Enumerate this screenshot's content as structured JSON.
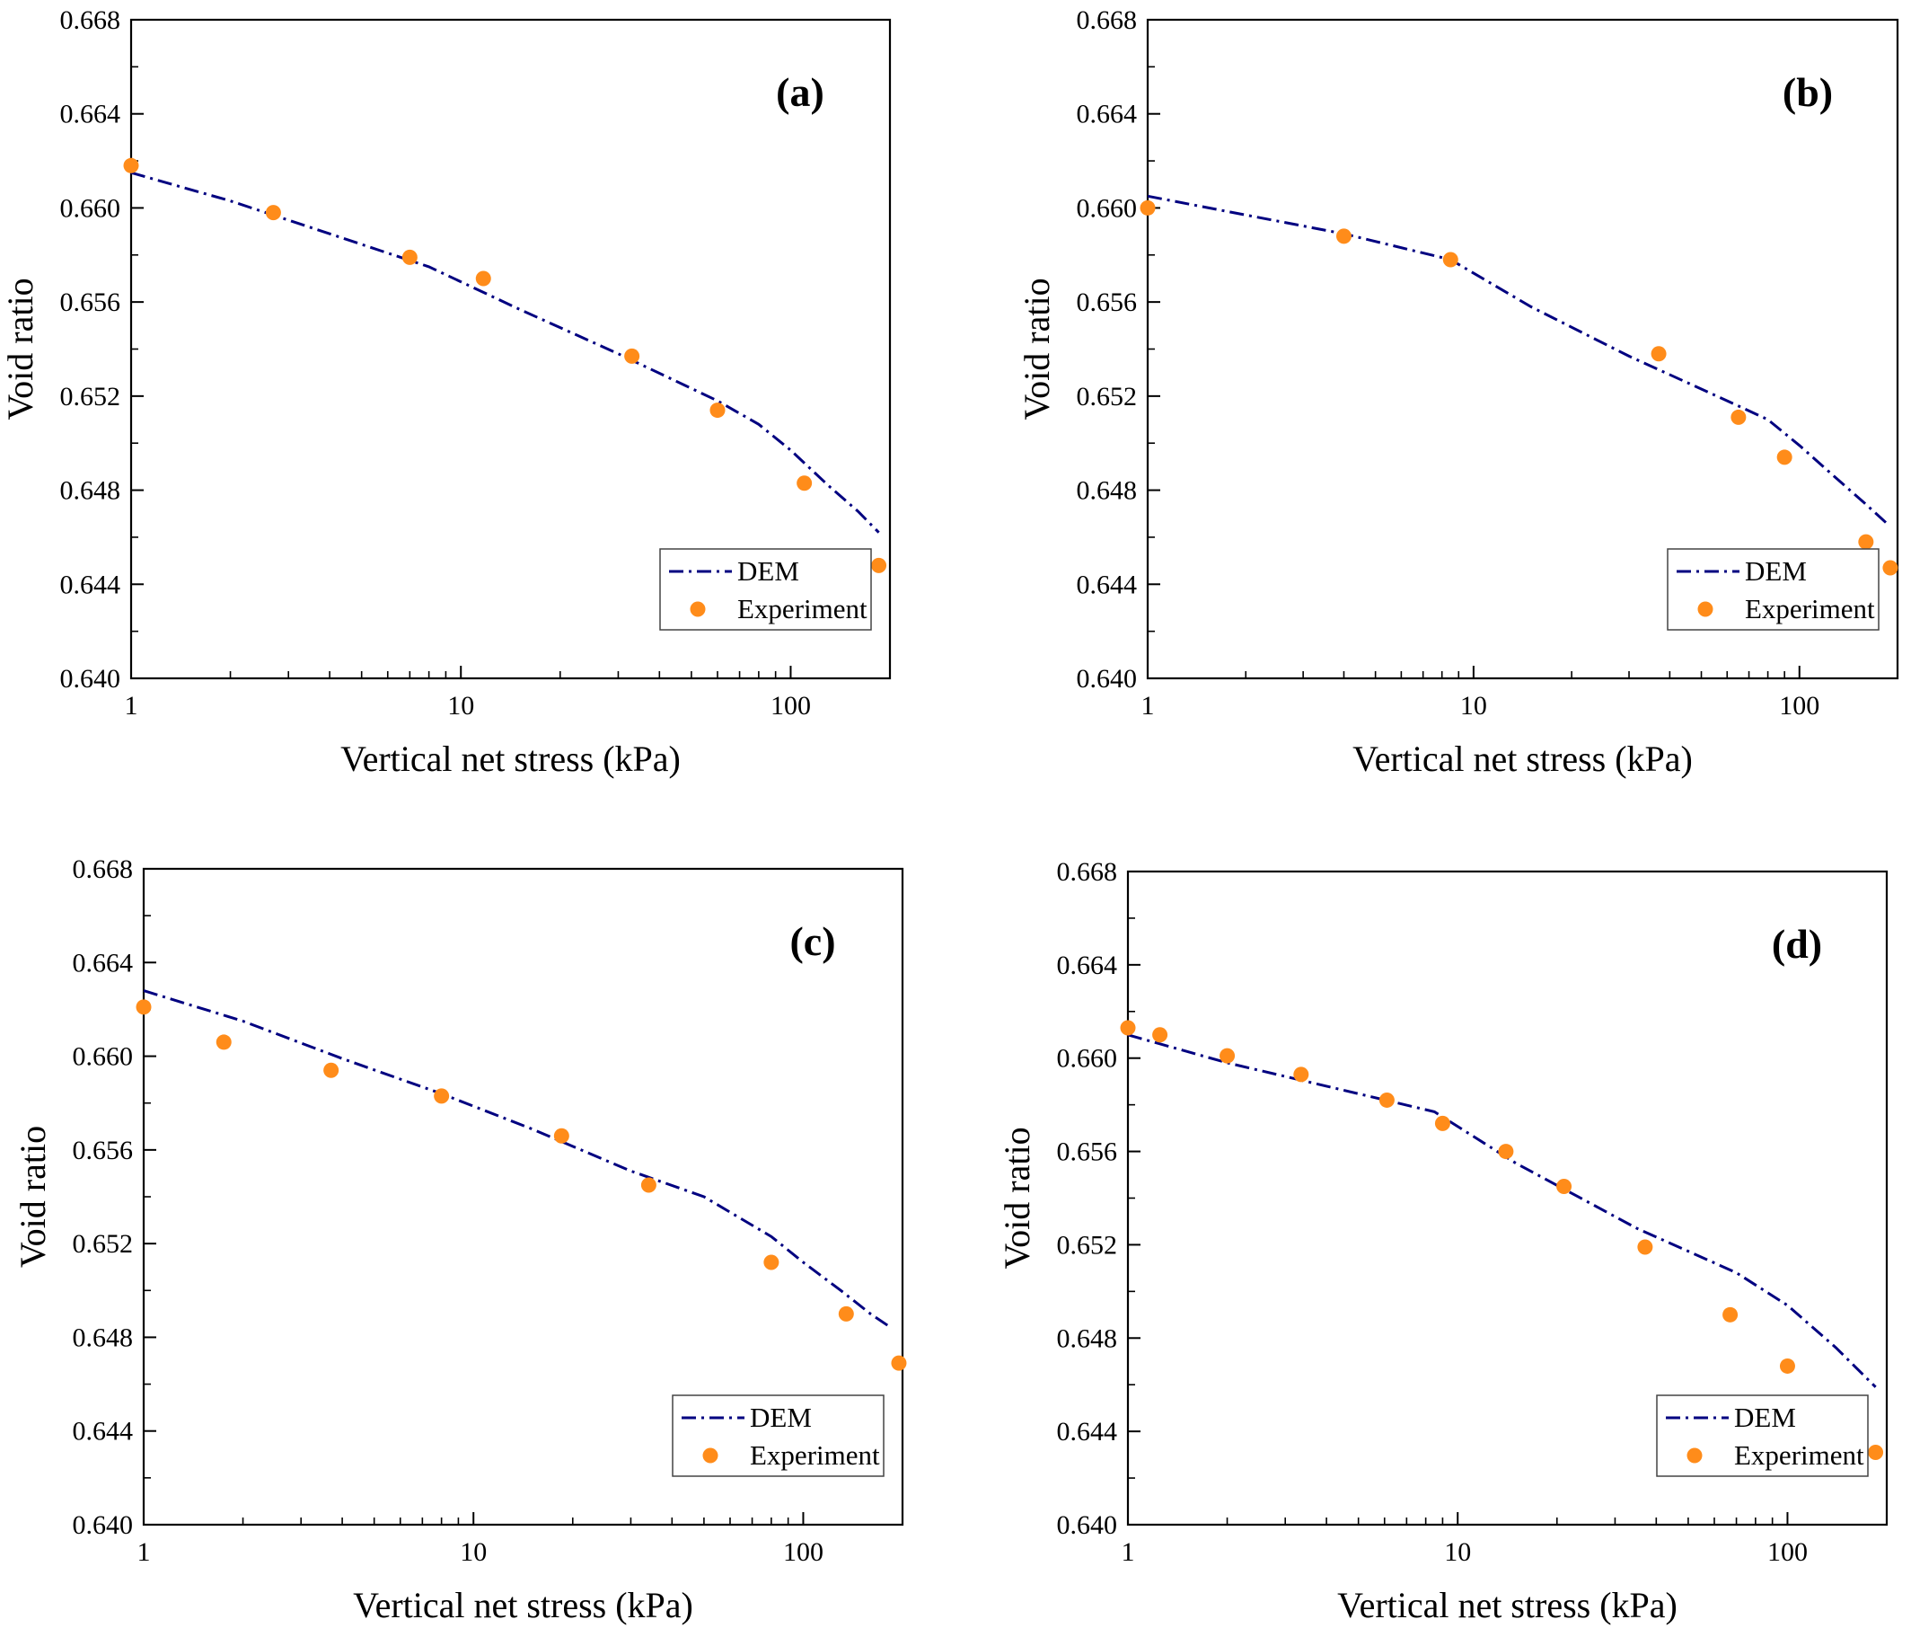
{
  "colors": {
    "dem_line": "#000080",
    "experiment_marker": "#FF8C1A",
    "axes": "#000000"
  },
  "chart_data": [
    {
      "type": "line",
      "panel_label": "(a)",
      "xlabel": "Vertical net stress (kPa)",
      "ylabel": "Void ratio",
      "xscale": "log",
      "xlim": [
        1,
        200
      ],
      "ylim": [
        0.64,
        0.668
      ],
      "x_ticks": [
        1,
        10,
        100
      ],
      "x_tick_labels": [
        "1",
        "10",
        "100"
      ],
      "y_ticks": [
        0.64,
        0.644,
        0.648,
        0.652,
        0.656,
        0.66,
        0.664,
        0.668
      ],
      "y_tick_labels": [
        "0.640",
        "0.644",
        "0.648",
        "0.652",
        "0.656",
        "0.660",
        "0.664",
        "0.668"
      ],
      "legend": {
        "position": "bottom-right",
        "entries": [
          "DEM",
          "Experiment"
        ]
      },
      "series": [
        {
          "name": "DEM",
          "style": "dash-dot",
          "x": [
            1,
            2,
            4,
            8,
            15,
            30,
            60,
            80,
            100,
            130,
            160,
            185
          ],
          "y": [
            0.6615,
            0.6603,
            0.6589,
            0.6575,
            0.6557,
            0.6538,
            0.6518,
            0.6508,
            0.6497,
            0.6482,
            0.6471,
            0.6462
          ]
        },
        {
          "name": "Experiment",
          "style": "marker",
          "x": [
            1,
            2.7,
            7,
            11.7,
            33,
            60,
            110,
            185
          ],
          "y": [
            0.6618,
            0.6598,
            0.6579,
            0.657,
            0.6537,
            0.6514,
            0.6483,
            0.6448
          ]
        }
      ]
    },
    {
      "type": "line",
      "panel_label": "(b)",
      "xlabel": "Vertical net stress (kPa)",
      "ylabel": "Void ratio",
      "xscale": "log",
      "xlim": [
        1,
        200
      ],
      "ylim": [
        0.64,
        0.668
      ],
      "x_ticks": [
        1,
        10,
        100
      ],
      "x_tick_labels": [
        "1",
        "10",
        "100"
      ],
      "y_ticks": [
        0.64,
        0.644,
        0.648,
        0.652,
        0.656,
        0.66,
        0.664,
        0.668
      ],
      "y_tick_labels": [
        "0.640",
        "0.644",
        "0.648",
        "0.652",
        "0.656",
        "0.660",
        "0.664",
        "0.668"
      ],
      "legend": {
        "position": "bottom-right",
        "entries": [
          "DEM",
          "Experiment"
        ]
      },
      "series": [
        {
          "name": "DEM",
          "style": "dash-dot",
          "x": [
            1,
            2,
            4,
            8.5,
            15,
            30,
            60,
            80,
            100,
            130,
            160,
            185
          ],
          "y": [
            0.6605,
            0.6597,
            0.6589,
            0.6578,
            0.6558,
            0.6537,
            0.6518,
            0.651,
            0.6499,
            0.6485,
            0.6474,
            0.6466
          ]
        },
        {
          "name": "Experiment",
          "style": "marker",
          "x": [
            1,
            4,
            8.5,
            37,
            65,
            90,
            160,
            190
          ],
          "y": [
            0.66,
            0.6588,
            0.6578,
            0.6538,
            0.6511,
            0.6494,
            0.6458,
            0.6447
          ]
        }
      ]
    },
    {
      "type": "line",
      "panel_label": "(c)",
      "xlabel": "Vertical net stress (kPa)",
      "ylabel": "Void ratio",
      "xscale": "log",
      "xlim": [
        1,
        200
      ],
      "ylim": [
        0.64,
        0.668
      ],
      "x_ticks": [
        1,
        10,
        100
      ],
      "x_tick_labels": [
        "1",
        "10",
        "100"
      ],
      "y_ticks": [
        0.64,
        0.644,
        0.648,
        0.652,
        0.656,
        0.66,
        0.664,
        0.668
      ],
      "y_tick_labels": [
        "0.640",
        "0.644",
        "0.648",
        "0.652",
        "0.656",
        "0.660",
        "0.664",
        "0.668"
      ],
      "legend": {
        "position": "bottom-right",
        "entries": [
          "DEM",
          "Experiment"
        ]
      },
      "series": [
        {
          "name": "DEM",
          "style": "dash-dot",
          "x": [
            1,
            2,
            4,
            8,
            15,
            30,
            50,
            80,
            100,
            130,
            160,
            185
          ],
          "y": [
            0.6628,
            0.6615,
            0.6599,
            0.6584,
            0.6569,
            0.6551,
            0.654,
            0.6523,
            0.6512,
            0.65,
            0.649,
            0.6484
          ]
        },
        {
          "name": "Experiment",
          "style": "marker",
          "x": [
            1,
            1.75,
            3.7,
            8,
            18.5,
            34,
            80,
            135,
            195
          ],
          "y": [
            0.6621,
            0.6606,
            0.6594,
            0.6583,
            0.6566,
            0.6545,
            0.6512,
            0.649,
            0.6469
          ]
        }
      ]
    },
    {
      "type": "line",
      "panel_label": "(d)",
      "xlabel": "Vertical net stress (kPa)",
      "ylabel": "Void ratio",
      "xscale": "log",
      "xlim": [
        1,
        200
      ],
      "ylim": [
        0.64,
        0.668
      ],
      "x_ticks": [
        1,
        10,
        100
      ],
      "x_tick_labels": [
        "1",
        "10",
        "100"
      ],
      "y_ticks": [
        0.64,
        0.644,
        0.648,
        0.652,
        0.656,
        0.66,
        0.664,
        0.668
      ],
      "y_tick_labels": [
        "0.640",
        "0.644",
        "0.648",
        "0.652",
        "0.656",
        "0.660",
        "0.664",
        "0.668"
      ],
      "legend": {
        "position": "bottom-right",
        "entries": [
          "DEM",
          "Experiment"
        ]
      },
      "series": [
        {
          "name": "DEM",
          "style": "dash-dot",
          "x": [
            1,
            2,
            4,
            8.5,
            15,
            35,
            70,
            100,
            140,
            185
          ],
          "y": [
            0.661,
            0.6598,
            0.6588,
            0.6577,
            0.6555,
            0.6527,
            0.6508,
            0.6494,
            0.6476,
            0.6459
          ]
        },
        {
          "name": "Experiment",
          "style": "marker",
          "x": [
            1,
            1.25,
            2,
            3.35,
            6.1,
            9,
            14,
            21,
            37,
            67,
            100,
            185
          ],
          "y": [
            0.6613,
            0.661,
            0.6601,
            0.6593,
            0.6582,
            0.6572,
            0.656,
            0.6545,
            0.6519,
            0.649,
            0.6468,
            0.6431
          ]
        }
      ]
    }
  ]
}
